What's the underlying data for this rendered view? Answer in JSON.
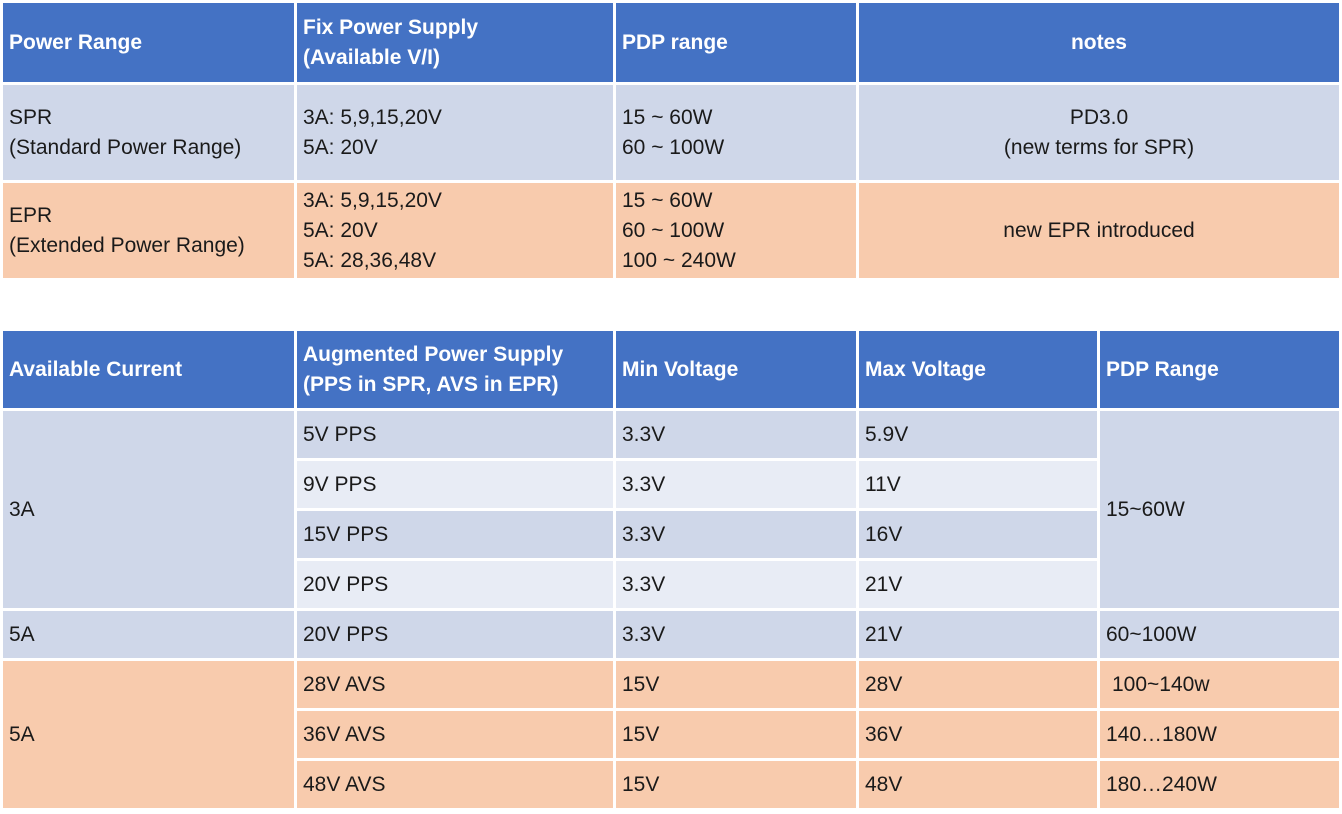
{
  "table1": {
    "headers": [
      "Power Range",
      "Fix Power Supply",
      "(Available V/I)",
      "PDP range",
      "notes"
    ],
    "rows": [
      {
        "range": [
          "SPR",
          "(Standard Power Range)"
        ],
        "supply": [
          "3A: 5,9,15,20V",
          "5A: 20V"
        ],
        "pdp": [
          "15 ~ 60W",
          "60 ~ 100W"
        ],
        "notes": [
          "PD3.0",
          "(new terms for SPR)"
        ]
      },
      {
        "range": [
          "EPR",
          "(Extended Power Range)"
        ],
        "supply": [
          "3A: 5,9,15,20V",
          "5A: 20V",
          "5A: 28,36,48V"
        ],
        "pdp": [
          "15 ~ 60W",
          "60 ~ 100W",
          "100 ~ 240W"
        ],
        "notes": [
          "new EPR introduced"
        ]
      }
    ]
  },
  "table2": {
    "headers": [
      "Available Current",
      "Augmented Power Supply",
      "(PPS in SPR, AVS in EPR)",
      "Min Voltage",
      "Max Voltage",
      "PDP Range"
    ],
    "groups": [
      {
        "current": "3A",
        "pdp": "15~60W",
        "rows": [
          {
            "supply": "5V PPS",
            "min": "3.3V",
            "max": "5.9V"
          },
          {
            "supply": "9V PPS",
            "min": "3.3V",
            "max": "11V"
          },
          {
            "supply": "15V PPS",
            "min": "3.3V",
            "max": "16V"
          },
          {
            "supply": "20V PPS",
            "min": "3.3V",
            "max": "21V"
          }
        ]
      },
      {
        "current": "5A",
        "pdp": "60~100W",
        "rows": [
          {
            "supply": "20V PPS",
            "min": "3.3V",
            "max": "21V"
          }
        ]
      },
      {
        "current": "5A",
        "rows": [
          {
            "supply": "28V AVS",
            "min": "15V",
            "max": "28V",
            "pdp": "100~140w"
          },
          {
            "supply": "36V AVS",
            "min": "15V",
            "max": "36V",
            "pdp": "140…180W"
          },
          {
            "supply": "48V AVS",
            "min": "15V",
            "max": "48V",
            "pdp": "180…240W"
          }
        ]
      }
    ]
  },
  "colors": {
    "header": "#4472c4",
    "spr_row": "#cfd7e9",
    "spr_row_alt": "#e8ecf5",
    "epr_row": "#f8cbad"
  }
}
